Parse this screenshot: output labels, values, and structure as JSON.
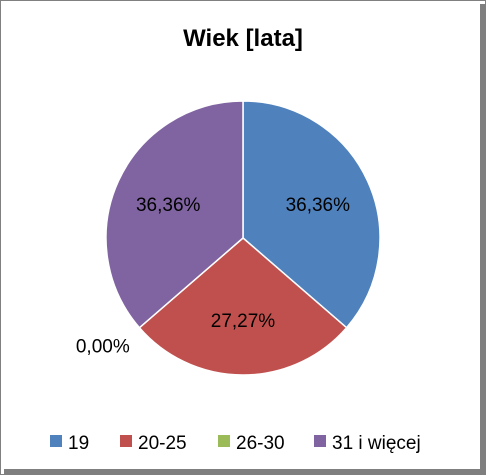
{
  "chart_data": {
    "type": "pie",
    "title": "Wiek [lata]",
    "categories": [
      "19",
      "20-25",
      "26-30",
      "31 i więcej"
    ],
    "values": [
      36.36,
      27.27,
      0.0,
      36.36
    ],
    "data_labels": [
      "36,36%",
      "27,27%",
      "0,00%",
      "36,36%"
    ],
    "colors": [
      "#4f81bd",
      "#c0504d",
      "#9bbb59",
      "#8064a2"
    ],
    "legend_position": "bottom"
  }
}
